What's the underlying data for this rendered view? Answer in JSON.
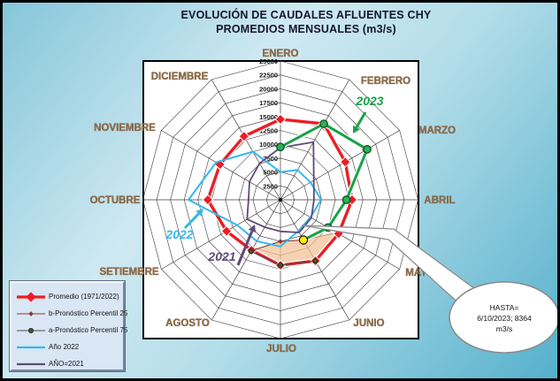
{
  "title": {
    "line1": "EVOLUCIÓN DE CAUDALES AFLUENTES CHY",
    "line2": "PROMEDIOS MENSUALES (m3/s)"
  },
  "colors": {
    "promedio": "#ED1C24",
    "percentil25": "#8E3B2F",
    "percentil75": "#4d4d4d",
    "percentil75_marker": "#44582c",
    "anio2022": "#33B8EC",
    "anio2021": "#5F497A",
    "anio2023": "#17A345",
    "anio2023_marker": "#2FAE5A",
    "highlight": "#FFF000",
    "band_fill": "#F3C096",
    "month_label": "#8F6B47",
    "grid": "#3c3c3c",
    "plot_bg": "#ffffff"
  },
  "chart_data": {
    "type": "radar",
    "categories": [
      "ENERO",
      "FEBRERO",
      "MARZO",
      "ABRIL",
      "MAYO",
      "JUNIO",
      "JULIO",
      "AGOSTO",
      "SETIEMBRE",
      "OCTUBRE",
      "NOVIEMBRE",
      "DICIEMBRE"
    ],
    "axis": {
      "min": 0,
      "max": 25000,
      "step": 2500,
      "tick_labels": [
        "2500",
        "5000",
        "7500",
        "10000",
        "12500",
        "15000",
        "17500",
        "20000",
        "22500",
        "25000"
      ]
    },
    "series": [
      {
        "name": "Promedio (1971/2022)",
        "key": "promedio",
        "marker": "diamond",
        "values": [
          14500,
          15800,
          13600,
          13000,
          12200,
          12700,
          11800,
          10500,
          11300,
          13200,
          12700,
          13200
        ]
      },
      {
        "name": "b-Pronóstico  Percentil 25",
        "key": "percentil25",
        "marker": "small-diamond",
        "values": [
          null,
          null,
          null,
          null,
          null,
          8364,
          7500,
          10600,
          null,
          null,
          null,
          null
        ]
      },
      {
        "name": "a-Pronóstico  Percentil 75",
        "key": "percentil75",
        "marker": "dot",
        "values": [
          null,
          null,
          null,
          null,
          null,
          12700,
          11800,
          10700,
          null,
          null,
          null,
          null
        ]
      },
      {
        "name": "Año 2022",
        "key": "anio2022",
        "marker": "none",
        "values": [
          5000,
          6200,
          6300,
          7400,
          6300,
          6500,
          8400,
          8600,
          9100,
          16700,
          13500,
          10000
        ]
      },
      {
        "name": "AÑO=2021",
        "key": "anio2021",
        "marker": "none",
        "values": [
          9400,
          12000,
          7000,
          6100,
          6500,
          6800,
          5700,
          5700,
          7000,
          5800,
          6500,
          7600
        ]
      },
      {
        "name": "2023",
        "key": "anio2023",
        "marker": "circle",
        "in_legend": false,
        "values": [
          9500,
          15800,
          18200,
          12000,
          10000,
          8364,
          null,
          null,
          null,
          null,
          null,
          null
        ]
      }
    ],
    "forecast_band": {
      "points": [
        [
          5,
          8364
        ],
        [
          6,
          7500
        ],
        [
          7,
          10650
        ],
        [
          6,
          11800
        ],
        [
          5,
          12700
        ],
        [
          4,
          11800
        ]
      ]
    },
    "highlight_point": {
      "month_index": 5,
      "value": 8364
    },
    "annotations": [
      {
        "text": "2023",
        "key": "anio2023"
      },
      {
        "text": "2022",
        "key": "anio2022"
      },
      {
        "text": "2021",
        "key": "anio2021"
      }
    ],
    "callout": {
      "lines": [
        "HASTA=",
        "6/10/2023;  8364",
        "m3/s"
      ]
    }
  },
  "legend": {
    "items": [
      {
        "label": "Promedio (1971/2022)",
        "key": "promedio"
      },
      {
        "label": "b-Pronóstico  Percentil 25",
        "key": "percentil25"
      },
      {
        "label": "a-Pronóstico  Percentil 75",
        "key": "percentil75"
      },
      {
        "label": "Año 2022",
        "key": "anio2022"
      },
      {
        "label": "AÑO=2021",
        "key": "anio2021"
      }
    ]
  }
}
